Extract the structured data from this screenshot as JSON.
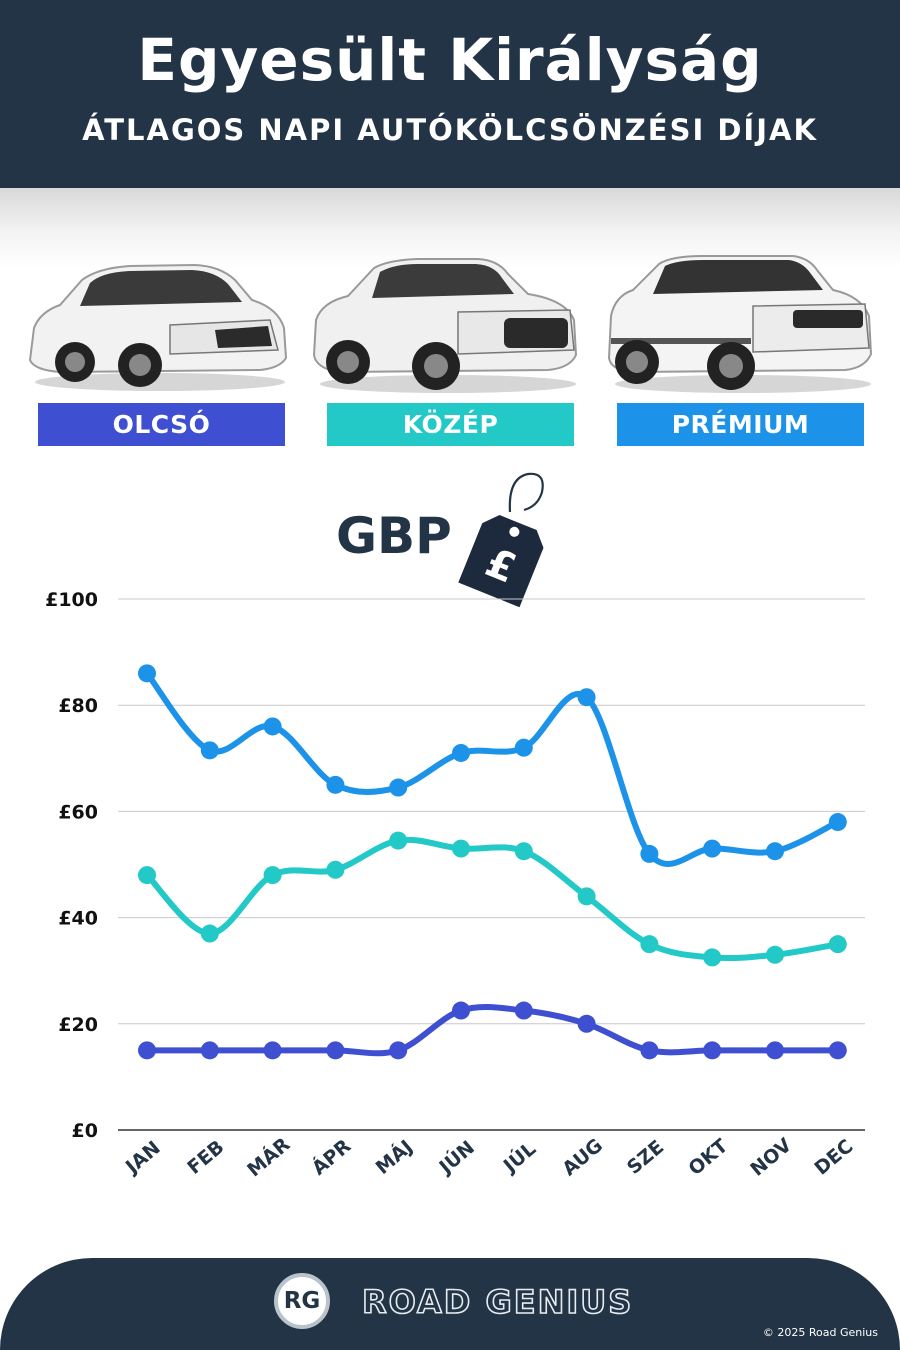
{
  "header": {
    "title": "Egyesült Királyság",
    "subtitle": "ÁTLAGOS NAPI AUTÓKÖLCSÖNZÉSI DÍJAK"
  },
  "categories": [
    {
      "label": "OLCSÓ",
      "color": "#3f4fd1"
    },
    {
      "label": "KÖZÉP",
      "color": "#22c9c6"
    },
    {
      "label": "PRÉMIUM",
      "color": "#1c93e8"
    }
  ],
  "currency": {
    "label": "GBP",
    "symbol": "£"
  },
  "chart_data": {
    "type": "line",
    "categories": [
      "JAN",
      "FEB",
      "MÁR",
      "ÁPR",
      "MÁJ",
      "JÚN",
      "JÚL",
      "AUG",
      "SZE",
      "OKT",
      "NOV",
      "DEC"
    ],
    "series": [
      {
        "name": "PRÉMIUM",
        "color": "#1c93e8",
        "values": [
          86,
          71.5,
          76,
          65,
          64.5,
          71,
          72,
          81.5,
          52,
          53,
          52.5,
          58
        ]
      },
      {
        "name": "KÖZÉP",
        "color": "#22c9c6",
        "values": [
          48,
          37,
          48,
          49,
          54.5,
          53,
          52.5,
          44,
          35,
          32.5,
          33,
          35
        ]
      },
      {
        "name": "OLCSÓ",
        "color": "#3f4fd1",
        "values": [
          15,
          15,
          15,
          15,
          15,
          22.5,
          22.5,
          20,
          15,
          15,
          15,
          15
        ]
      }
    ],
    "yticks": [
      "£0",
      "£20",
      "£40",
      "£60",
      "£80",
      "£100"
    ],
    "ylim": [
      0,
      100
    ],
    "grid": true
  },
  "footer": {
    "logo": "RG",
    "brand": "ROAD GENIUS",
    "copyright": "© 2025 Road Genius"
  }
}
